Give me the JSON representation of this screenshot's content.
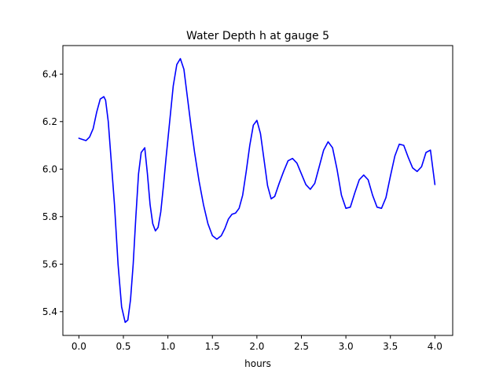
{
  "chart_data": {
    "type": "line",
    "title": "Water Depth h at gauge 5",
    "xlabel": "hours",
    "ylabel": "",
    "xlim": [
      -0.18,
      4.2
    ],
    "ylim": [
      5.3,
      6.52
    ],
    "xticks": [
      0.0,
      0.5,
      1.0,
      1.5,
      2.0,
      2.5,
      3.0,
      3.5,
      4.0
    ],
    "xtick_labels": [
      "0.0",
      "0.5",
      "1.0",
      "1.5",
      "2.0",
      "2.5",
      "3.0",
      "3.5",
      "4.0"
    ],
    "yticks": [
      5.4,
      5.6,
      5.8,
      6.0,
      6.2,
      6.4
    ],
    "ytick_labels": [
      "5.4",
      "5.6",
      "5.8",
      "6.0",
      "6.2",
      "6.4"
    ],
    "grid": false,
    "series": [
      {
        "color": "#0000ff",
        "x": [
          0.0,
          0.04,
          0.08,
          0.12,
          0.16,
          0.2,
          0.24,
          0.28,
          0.3,
          0.33,
          0.36,
          0.4,
          0.44,
          0.48,
          0.52,
          0.55,
          0.58,
          0.61,
          0.64,
          0.67,
          0.7,
          0.74,
          0.77,
          0.8,
          0.83,
          0.86,
          0.89,
          0.92,
          0.95,
          0.98,
          1.02,
          1.06,
          1.1,
          1.14,
          1.18,
          1.22,
          1.26,
          1.3,
          1.35,
          1.4,
          1.45,
          1.5,
          1.55,
          1.6,
          1.64,
          1.68,
          1.72,
          1.76,
          1.8,
          1.84,
          1.88,
          1.92,
          1.96,
          2.0,
          2.04,
          2.08,
          2.12,
          2.16,
          2.2,
          2.25,
          2.3,
          2.35,
          2.4,
          2.45,
          2.5,
          2.55,
          2.6,
          2.65,
          2.7,
          2.75,
          2.8,
          2.85,
          2.9,
          2.95,
          3.0,
          3.05,
          3.1,
          3.15,
          3.2,
          3.25,
          3.3,
          3.35,
          3.4,
          3.45,
          3.5,
          3.55,
          3.6,
          3.65,
          3.7,
          3.75,
          3.8,
          3.85,
          3.9,
          3.95,
          4.0
        ],
        "y": [
          6.13,
          6.125,
          6.12,
          6.135,
          6.17,
          6.24,
          6.295,
          6.305,
          6.29,
          6.2,
          6.05,
          5.85,
          5.6,
          5.42,
          5.355,
          5.365,
          5.45,
          5.6,
          5.8,
          5.98,
          6.07,
          6.09,
          5.98,
          5.85,
          5.77,
          5.74,
          5.755,
          5.82,
          5.93,
          6.05,
          6.2,
          6.35,
          6.44,
          6.465,
          6.42,
          6.3,
          6.18,
          6.07,
          5.95,
          5.85,
          5.77,
          5.72,
          5.705,
          5.72,
          5.75,
          5.79,
          5.81,
          5.815,
          5.835,
          5.89,
          5.99,
          6.1,
          6.185,
          6.205,
          6.15,
          6.04,
          5.93,
          5.875,
          5.885,
          5.94,
          5.99,
          6.035,
          6.045,
          6.025,
          5.98,
          5.935,
          5.915,
          5.94,
          6.01,
          6.08,
          6.115,
          6.09,
          6.0,
          5.89,
          5.835,
          5.84,
          5.9,
          5.955,
          5.975,
          5.955,
          5.89,
          5.84,
          5.835,
          5.88,
          5.97,
          6.055,
          6.105,
          6.1,
          6.05,
          6.005,
          5.99,
          6.01,
          6.07,
          6.08,
          5.935
        ]
      }
    ]
  }
}
